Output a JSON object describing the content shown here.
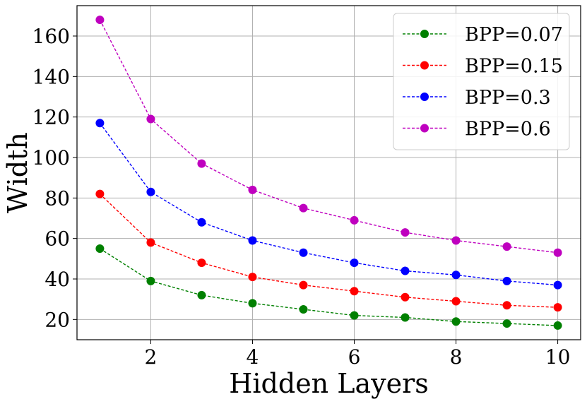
{
  "chart_data": {
    "type": "line",
    "xlabel": "Hidden Layers",
    "ylabel": "Width",
    "x": [
      1,
      2,
      3,
      4,
      5,
      6,
      7,
      8,
      9,
      10
    ],
    "xlim": [
      0.55,
      10.45
    ],
    "ylim": [
      10,
      175
    ],
    "xticks": [
      2,
      4,
      6,
      8,
      10
    ],
    "yticks": [
      20,
      40,
      60,
      80,
      100,
      120,
      140,
      160
    ],
    "grid": true,
    "legend_position": "top-right",
    "series": [
      {
        "name": "BPP=0.07",
        "color": "#008000",
        "values": [
          55,
          39,
          32,
          28,
          25,
          22,
          21,
          19,
          18,
          17
        ]
      },
      {
        "name": "BPP=0.15",
        "color": "#ff0000",
        "values": [
          82,
          58,
          48,
          41,
          37,
          34,
          31,
          29,
          27,
          26
        ]
      },
      {
        "name": "BPP=0.3",
        "color": "#0000ff",
        "values": [
          117,
          83,
          68,
          59,
          53,
          48,
          44,
          42,
          39,
          37
        ]
      },
      {
        "name": "BPP=0.6",
        "color": "#bf00bf",
        "values": [
          168,
          119,
          97,
          84,
          75,
          69,
          63,
          59,
          56,
          53
        ]
      }
    ]
  }
}
